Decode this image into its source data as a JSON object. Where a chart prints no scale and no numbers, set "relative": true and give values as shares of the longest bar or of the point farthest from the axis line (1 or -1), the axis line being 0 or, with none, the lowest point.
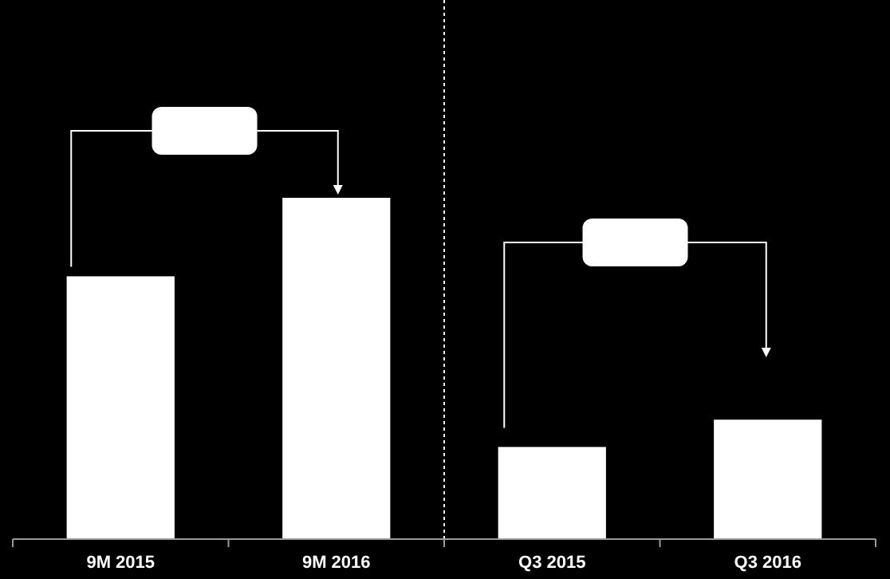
{
  "chart_data": {
    "type": "bar",
    "categories": [
      "9M 2015",
      "9M 2016",
      "Q3 2015",
      "Q3 2016"
    ],
    "values": [
      0.77,
      1,
      0.27,
      0.35
    ],
    "color": "#ffffff",
    "relative": true
  }
}
